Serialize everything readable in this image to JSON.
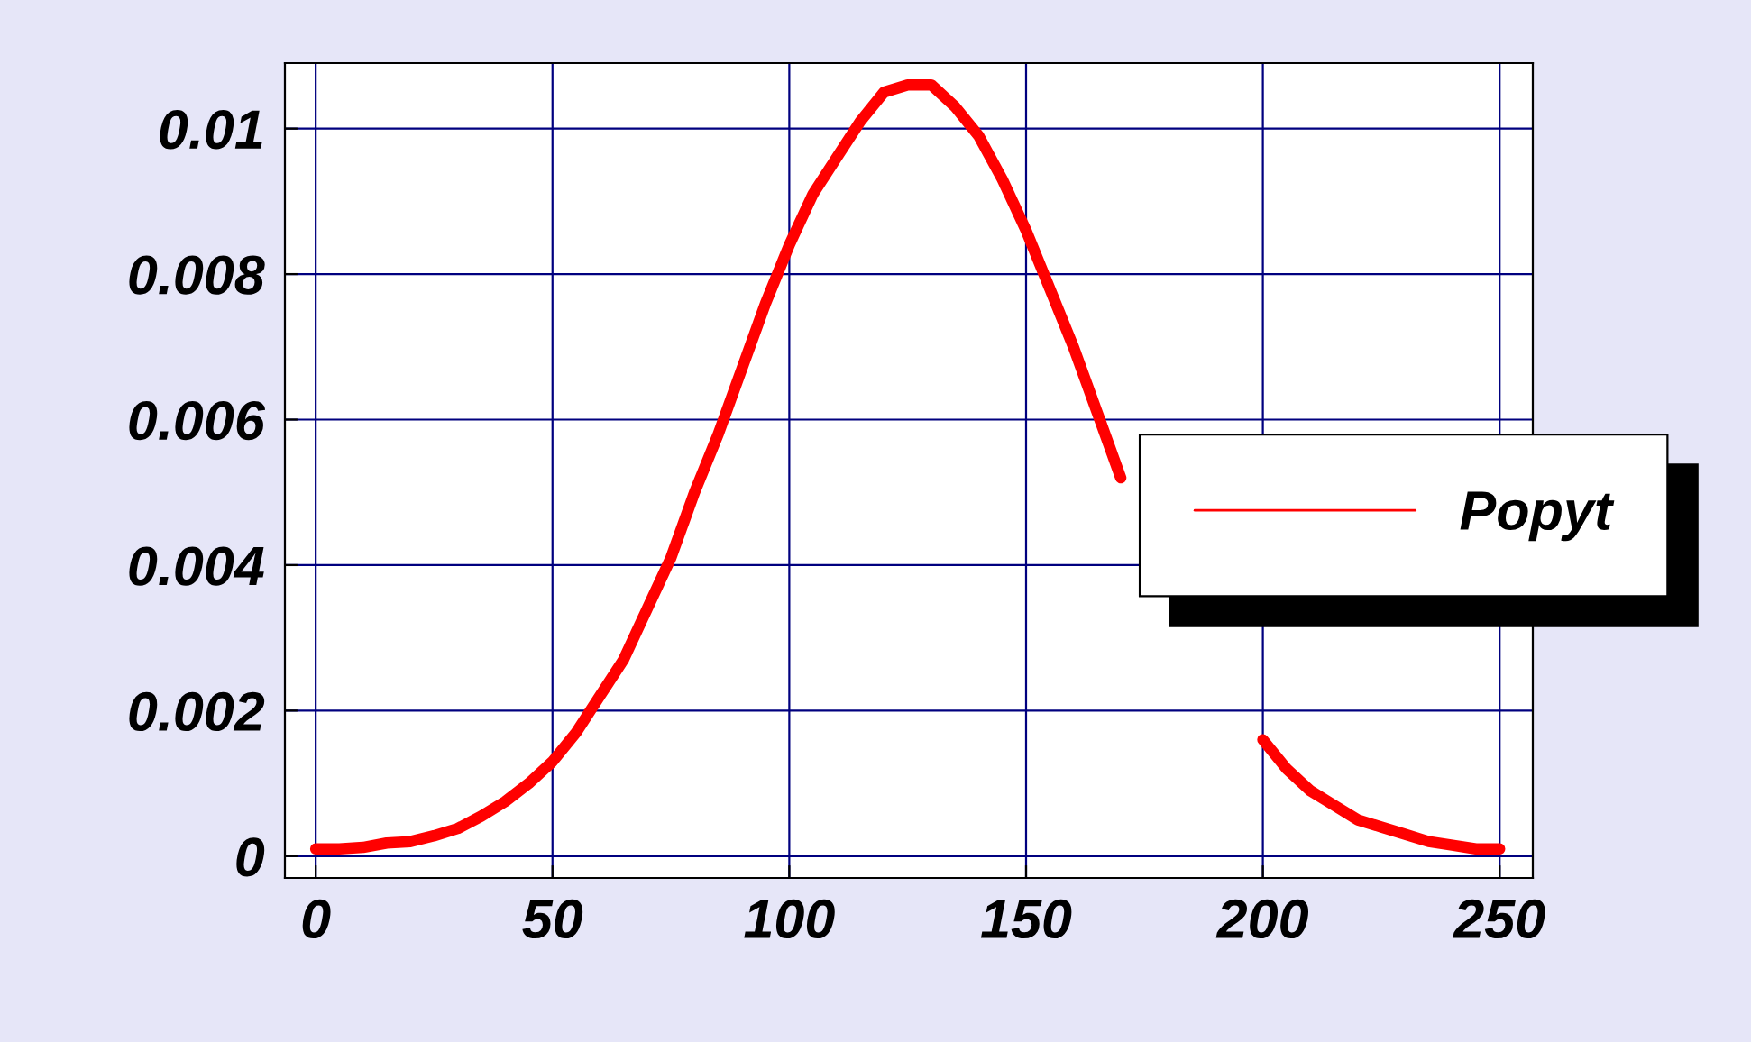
{
  "chart_data": {
    "type": "line",
    "legend": "right",
    "grid": true,
    "marker": "none",
    "line_style": "solid",
    "xlim": [
      -6.5,
      257
    ],
    "ylim": [
      -0.0003,
      0.0109
    ],
    "xticks": [
      0,
      50,
      100,
      150,
      200,
      250
    ],
    "yticks": [
      0,
      0.002,
      0.004,
      0.006,
      0.008,
      0.01
    ],
    "x": [
      0,
      5,
      10,
      15,
      20,
      25,
      30,
      35,
      40,
      45,
      50,
      55,
      60,
      65,
      70,
      75,
      80,
      85,
      90,
      95,
      100,
      105,
      110,
      115,
      120,
      125,
      130,
      135,
      140,
      145,
      150,
      155,
      160,
      165,
      170,
      175,
      180,
      185,
      190,
      195,
      200,
      205,
      210,
      215,
      220,
      225,
      230,
      235,
      240,
      245,
      250
    ],
    "series": [
      {
        "name": "Popyt",
        "color": "#ff0000",
        "values": [
          0.0001,
          0.0001,
          0.00012,
          0.00018,
          0.0002,
          0.00028,
          0.00038,
          0.00055,
          0.00075,
          0.001,
          0.0013,
          0.0017,
          0.0022,
          0.0027,
          0.0034,
          0.0041,
          0.005,
          0.0058,
          0.0067,
          0.0076,
          0.0084,
          0.0091,
          0.0096,
          0.0101,
          0.0105,
          0.0106,
          0.0106,
          0.0103,
          0.0099,
          0.0093,
          0.0086,
          0.0078,
          0.007,
          0.0061,
          0.0052,
          null,
          null,
          null,
          null,
          null,
          0.0016,
          0.0012,
          0.0009,
          0.0007,
          0.0005,
          0.0004,
          0.0003,
          0.0002,
          0.00015,
          0.0001,
          0.0001
        ]
      }
    ]
  }
}
